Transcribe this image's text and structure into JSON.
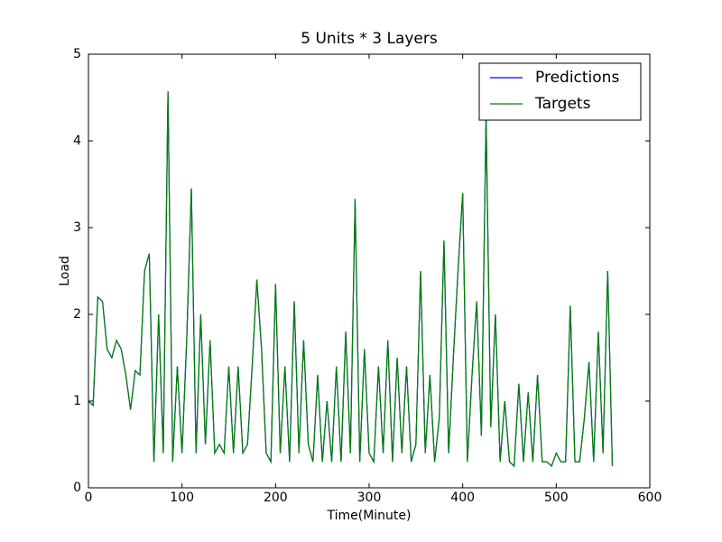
{
  "chart_data": {
    "type": "line",
    "title": "5 Units * 3 Layers",
    "x_label": "Time(Minute)",
    "y_label": "Load",
    "x": [
      0,
      5,
      10,
      15,
      20,
      25,
      30,
      35,
      40,
      45,
      50,
      55,
      60,
      65,
      70,
      75,
      80,
      85,
      90,
      95,
      100,
      105,
      110,
      115,
      120,
      125,
      130,
      135,
      140,
      145,
      150,
      155,
      160,
      165,
      170,
      175,
      180,
      185,
      190,
      195,
      200,
      205,
      210,
      215,
      220,
      225,
      230,
      235,
      240,
      245,
      250,
      255,
      260,
      265,
      270,
      275,
      280,
      285,
      290,
      295,
      300,
      305,
      310,
      315,
      320,
      325,
      330,
      335,
      340,
      345,
      350,
      355,
      360,
      365,
      370,
      375,
      380,
      385,
      390,
      395,
      400,
      405,
      410,
      415,
      420,
      425,
      430,
      435,
      440,
      445,
      450,
      455,
      460,
      465,
      470,
      475,
      480,
      485,
      490,
      495,
      500,
      505,
      510,
      515,
      520,
      525,
      530,
      535,
      540,
      545,
      550,
      555,
      560
    ],
    "series": [
      {
        "name": "Predictions",
        "color": "#0000ff",
        "values": [
          1.0,
          0.95,
          2.2,
          2.15,
          1.6,
          1.5,
          1.7,
          1.6,
          1.3,
          0.9,
          1.35,
          1.3,
          2.5,
          2.7,
          0.3,
          2.0,
          0.4,
          4.57,
          0.3,
          1.4,
          0.4,
          1.7,
          3.45,
          0.4,
          2.0,
          0.5,
          1.7,
          0.4,
          0.5,
          0.4,
          1.4,
          0.4,
          1.4,
          0.4,
          0.5,
          1.4,
          2.4,
          1.6,
          0.4,
          0.3,
          2.35,
          0.4,
          1.4,
          0.3,
          2.15,
          0.4,
          1.7,
          0.5,
          0.3,
          1.3,
          0.3,
          1.0,
          0.3,
          1.4,
          0.3,
          1.8,
          0.4,
          3.33,
          0.3,
          1.6,
          0.4,
          0.3,
          1.4,
          0.4,
          1.7,
          0.3,
          1.5,
          0.4,
          1.4,
          0.3,
          0.5,
          2.5,
          0.4,
          1.3,
          0.3,
          0.8,
          2.85,
          0.4,
          1.5,
          2.5,
          3.4,
          0.3,
          1.3,
          2.15,
          0.6,
          4.3,
          0.7,
          2.0,
          0.3,
          1.0,
          0.3,
          0.25,
          1.2,
          0.3,
          1.1,
          0.3,
          1.3,
          0.3,
          0.3,
          0.25,
          0.4,
          0.3,
          0.3,
          2.1,
          0.3,
          0.3,
          0.8,
          1.45,
          0.3,
          1.8,
          0.4,
          2.5,
          0.25
        ]
      },
      {
        "name": "Targets",
        "color": "#008000",
        "values": [
          1.0,
          0.95,
          2.2,
          2.15,
          1.6,
          1.5,
          1.7,
          1.6,
          1.3,
          0.9,
          1.35,
          1.3,
          2.5,
          2.7,
          0.3,
          2.0,
          0.4,
          4.57,
          0.3,
          1.4,
          0.4,
          1.7,
          3.45,
          0.4,
          2.0,
          0.5,
          1.7,
          0.4,
          0.5,
          0.4,
          1.4,
          0.4,
          1.4,
          0.4,
          0.5,
          1.4,
          2.4,
          1.6,
          0.4,
          0.3,
          2.35,
          0.4,
          1.4,
          0.3,
          2.15,
          0.4,
          1.7,
          0.5,
          0.3,
          1.3,
          0.3,
          1.0,
          0.3,
          1.4,
          0.3,
          1.8,
          0.4,
          3.33,
          0.3,
          1.6,
          0.4,
          0.3,
          1.4,
          0.4,
          1.7,
          0.3,
          1.5,
          0.4,
          1.4,
          0.3,
          0.5,
          2.5,
          0.4,
          1.3,
          0.3,
          0.8,
          2.85,
          0.4,
          1.5,
          2.5,
          3.4,
          0.3,
          1.3,
          2.15,
          0.6,
          4.3,
          0.7,
          2.0,
          0.3,
          1.0,
          0.3,
          0.25,
          1.2,
          0.3,
          1.1,
          0.3,
          1.3,
          0.3,
          0.3,
          0.25,
          0.4,
          0.3,
          0.3,
          2.1,
          0.3,
          0.3,
          0.8,
          1.45,
          0.3,
          1.8,
          0.4,
          2.5,
          0.25
        ]
      }
    ],
    "xlim": [
      0,
      600
    ],
    "xticks": [
      0,
      100,
      200,
      300,
      400,
      500,
      600
    ],
    "ylim": [
      0,
      5
    ],
    "yticks": [
      0,
      1,
      2,
      3,
      4,
      5
    ],
    "legend": "upper right"
  }
}
